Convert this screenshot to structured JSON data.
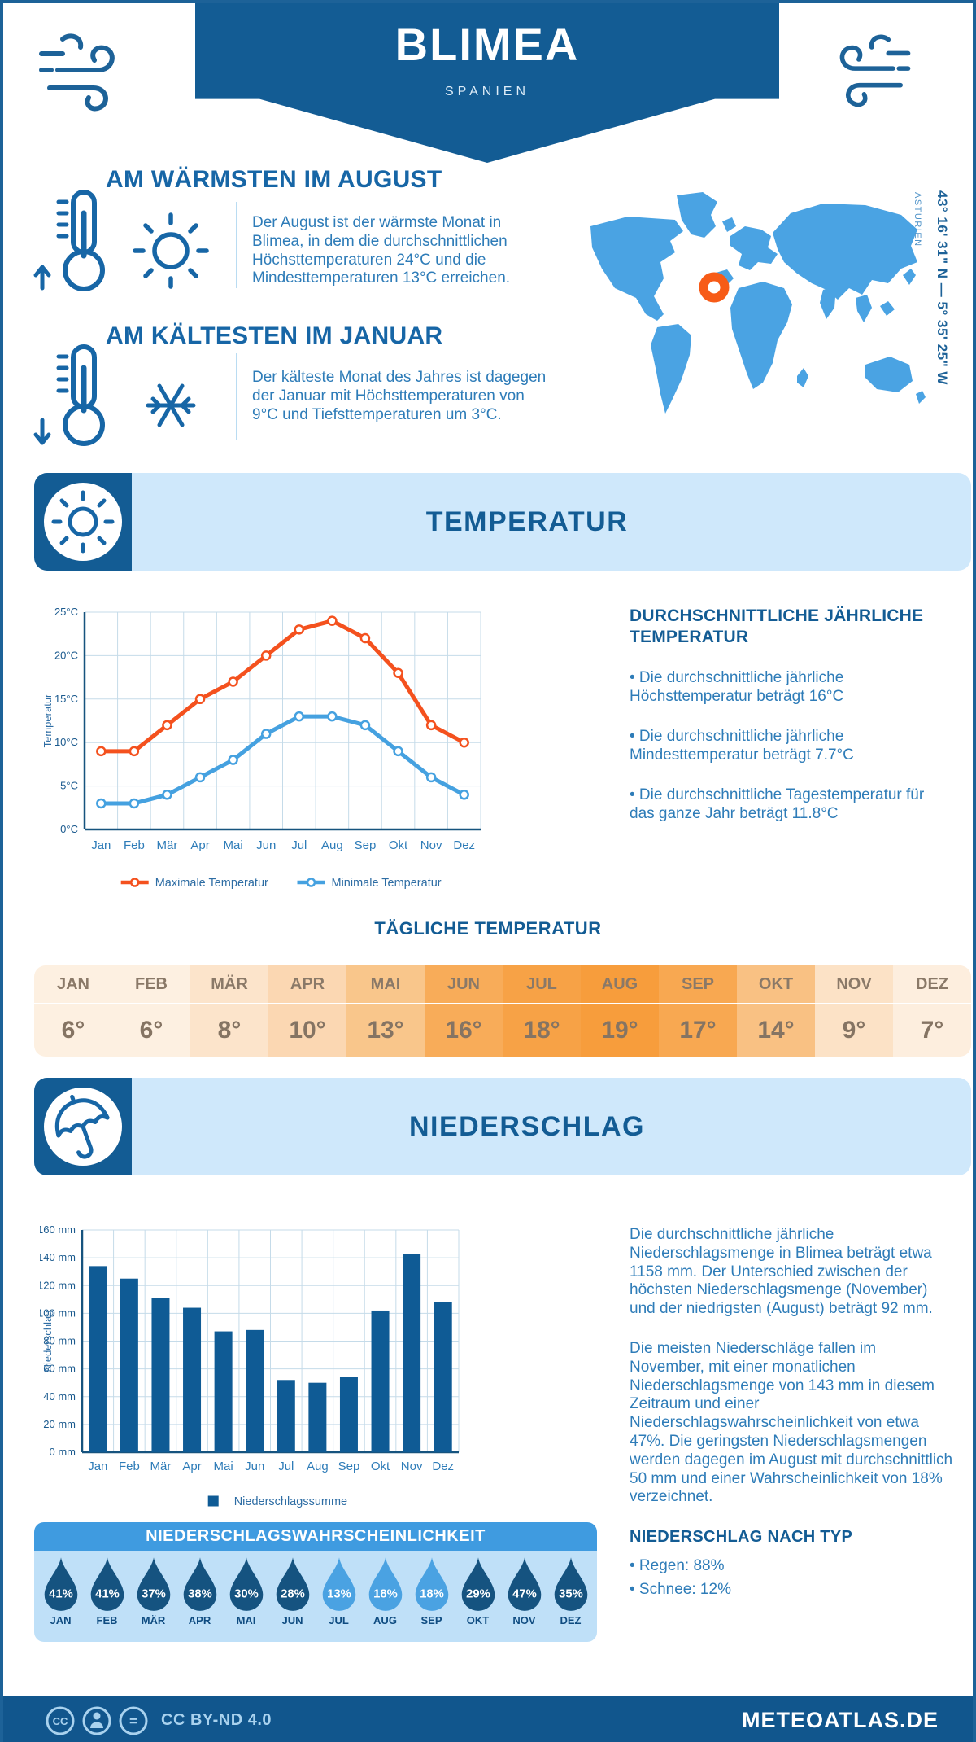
{
  "header": {
    "title": "BLIMEA",
    "subtitle": "SPANIEN",
    "band_color": "#135c94"
  },
  "icons": {
    "header_left": "wind-icon",
    "header_right": "wind-icon",
    "warm": "thermometer-up-sun-icon",
    "cold": "thermometer-down-snowflake-icon",
    "temperature_banner": "sun-icon",
    "precipitation_banner": "umbrella-icon",
    "probability": "water-drop-icon",
    "footer": "cc-license-icons"
  },
  "highlights": [
    {
      "heading": "AM WÄRMSTEN IM AUGUST",
      "text": "Der August ist der wärmste Monat in Blimea, in dem die durchschnittlichen Höchsttemperaturen 24°C und die Mindesttemperaturen 13°C erreichen."
    },
    {
      "heading": "AM KÄLTESTEN IM JANUAR",
      "text": "Der kälteste Monat des Jahres ist dagegen der Januar mit Höchsttemperaturen von 9°C und Tiefsttemperaturen um 3°C."
    }
  ],
  "map": {
    "coordinates": "43° 16' 31\" N — 5° 35' 25\" W",
    "region": "ASTURIEN",
    "land_color": "#4aa3e3",
    "marker_color": "#f75b17"
  },
  "temperature_section": {
    "banner_title": "TEMPERATUR"
  },
  "annual_summary": {
    "heading": "DURCHSCHNITTLICHE JÄHRLICHE TEMPERATUR",
    "bullets": [
      "• Die durchschnittliche jährliche Höchsttemperatur beträgt 16°C",
      "• Die durchschnittliche jährliche Mindesttemperatur beträgt 7.7°C",
      "• Die durchschnittliche Tagestemperatur für das ganze Jahr beträgt 11.8°C"
    ]
  },
  "chart_data": [
    {
      "type": "line",
      "title": "Temperatur",
      "x": [
        "Jan",
        "Feb",
        "Mär",
        "Apr",
        "Mai",
        "Jun",
        "Jul",
        "Aug",
        "Sep",
        "Okt",
        "Nov",
        "Dez"
      ],
      "series": [
        {
          "name": "Maximale Temperatur",
          "color": "#f4511e",
          "values": [
            9,
            9,
            12,
            15,
            17,
            20,
            23,
            24,
            22,
            18,
            12,
            10
          ]
        },
        {
          "name": "Minimale Temperatur",
          "color": "#45a1e0",
          "values": [
            3,
            3,
            4,
            6,
            8,
            11,
            13,
            13,
            12,
            9,
            6,
            4
          ]
        }
      ],
      "ylabel": "Temperatur",
      "xlabel": "",
      "ylim": [
        0,
        25
      ],
      "ytick_step": 5,
      "ytick_suffix": "°C",
      "grid": true,
      "legend_position": "bottom"
    },
    {
      "type": "bar",
      "title": "Niederschlag",
      "categories": [
        "Jan",
        "Feb",
        "Mär",
        "Apr",
        "Mai",
        "Jun",
        "Jul",
        "Aug",
        "Sep",
        "Okt",
        "Nov",
        "Dez"
      ],
      "series": [
        {
          "name": "Niederschlagssumme",
          "color": "#0f5b95",
          "values": [
            134,
            125,
            111,
            104,
            87,
            88,
            52,
            50,
            54,
            102,
            143,
            108
          ]
        }
      ],
      "ylabel": "Niederschlag",
      "xlabel": "",
      "ylim": [
        0,
        160
      ],
      "ytick_step": 20,
      "ytick_suffix": " mm",
      "grid": true,
      "legend_position": "bottom"
    }
  ],
  "daily_table": {
    "heading": "TÄGLICHE TEMPERATUR",
    "months": [
      "JAN",
      "FEB",
      "MÄR",
      "APR",
      "MAI",
      "JUN",
      "JUL",
      "AUG",
      "SEP",
      "OKT",
      "NOV",
      "DEZ"
    ],
    "values": [
      "6°",
      "6°",
      "8°",
      "10°",
      "13°",
      "16°",
      "18°",
      "19°",
      "17°",
      "14°",
      "9°",
      "7°"
    ],
    "colors": [
      "#fdf0e1",
      "#fdf0e1",
      "#fce4cb",
      "#fbd7b2",
      "#f9c68b",
      "#f8ac59",
      "#f7a246",
      "#f79d3c",
      "#f8a851",
      "#f9c183",
      "#fce2c6",
      "#fdeede"
    ]
  },
  "precipitation_section": {
    "banner_title": "NIEDERSCHLAG",
    "paragraphs": [
      "Die durchschnittliche jährliche Niederschlagsmenge in Blimea beträgt etwa 1158 mm. Der Unterschied zwischen der höchsten Niederschlagsmenge (November) und der niedrigsten (August) beträgt 92 mm.",
      "Die meisten Niederschläge fallen im November, mit einer monatlichen Niederschlagsmenge von 143 mm in diesem Zeitraum und einer Niederschlagswahrscheinlichkeit von etwa 47%. Die geringsten Niederschlagsmengen werden dagegen im August mit durchschnittlich 50 mm und einer Wahrscheinlichkeit von 18% verzeichnet."
    ],
    "by_type": {
      "heading": "NIEDERSCHLAG NACH TYP",
      "items": [
        "• Regen: 88%",
        "• Schnee: 12%"
      ]
    }
  },
  "precip_probability": {
    "title": "NIEDERSCHLAGSWAHRSCHEINLICHKEIT",
    "months": [
      "JAN",
      "FEB",
      "MÄR",
      "APR",
      "MAI",
      "JUN",
      "JUL",
      "AUG",
      "SEP",
      "OKT",
      "NOV",
      "DEZ"
    ],
    "values": [
      "41%",
      "41%",
      "37%",
      "38%",
      "30%",
      "28%",
      "13%",
      "18%",
      "18%",
      "29%",
      "47%",
      "35%"
    ],
    "light_months": [
      6,
      7,
      8
    ],
    "drop_color_dark": "#155380",
    "drop_color_light": "#4aa2e2"
  },
  "footer": {
    "license": "CC BY-ND 4.0",
    "site": "METEOATLAS.DE"
  }
}
